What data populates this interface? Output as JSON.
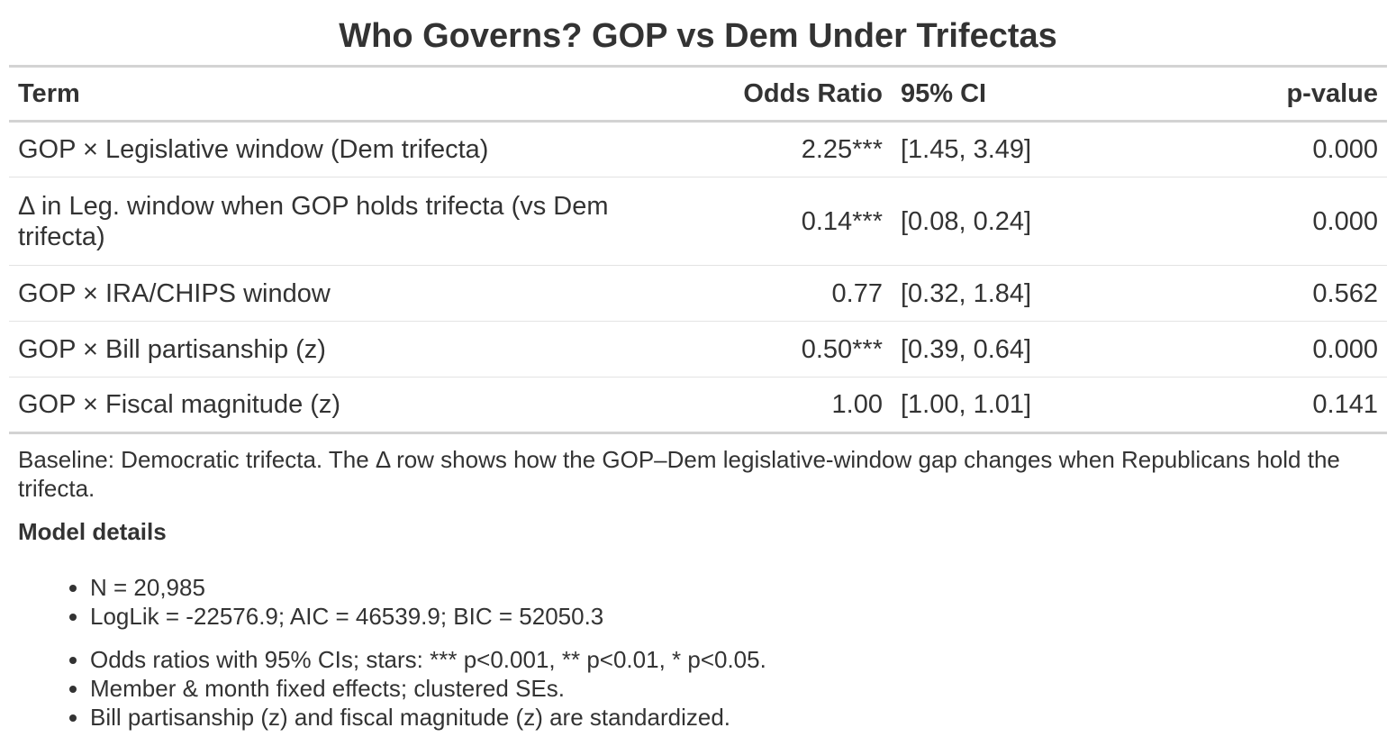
{
  "title": "Who Governs? GOP vs Dem Under Trifectas",
  "table": {
    "headers": {
      "term": "Term",
      "odds_ratio": "Odds Ratio",
      "ci": "95% CI",
      "p_value": "p-value"
    },
    "rows": [
      {
        "term": "GOP × Legislative window (Dem trifecta)",
        "odds_ratio": "2.25***",
        "ci": "[1.45, 3.49]",
        "p_value": "0.000"
      },
      {
        "term": "Δ in Leg. window when GOP holds trifecta (vs Dem trifecta)",
        "odds_ratio": "0.14***",
        "ci": "[0.08, 0.24]",
        "p_value": "0.000"
      },
      {
        "term": "GOP × IRA/CHIPS window",
        "odds_ratio": "0.77",
        "ci": "[0.32, 1.84]",
        "p_value": "0.562"
      },
      {
        "term": "GOP × Bill partisanship (z)",
        "odds_ratio": "0.50***",
        "ci": "[0.39, 0.64]",
        "p_value": "0.000"
      },
      {
        "term": "GOP × Fiscal magnitude (z)",
        "odds_ratio": "1.00",
        "ci": "[1.00, 1.01]",
        "p_value": "0.141"
      }
    ]
  },
  "footer": {
    "note": "Baseline: Democratic trifecta. The Δ row shows how the GOP–Dem legislative-window gap changes when Republicans hold the trifecta.",
    "details_title": "Model details",
    "details_items": [
      "N = 20,985",
      "LogLik = -22576.9; AIC = 46539.9; BIC = 52050.3"
    ],
    "notes_items": [
      "Odds ratios with 95% CIs; stars: *** p<0.001, ** p<0.01, * p<0.05.",
      "Member & month fixed effects; clustered SEs.",
      "Bill partisanship (z) and fiscal magnitude (z) are standardized."
    ]
  }
}
